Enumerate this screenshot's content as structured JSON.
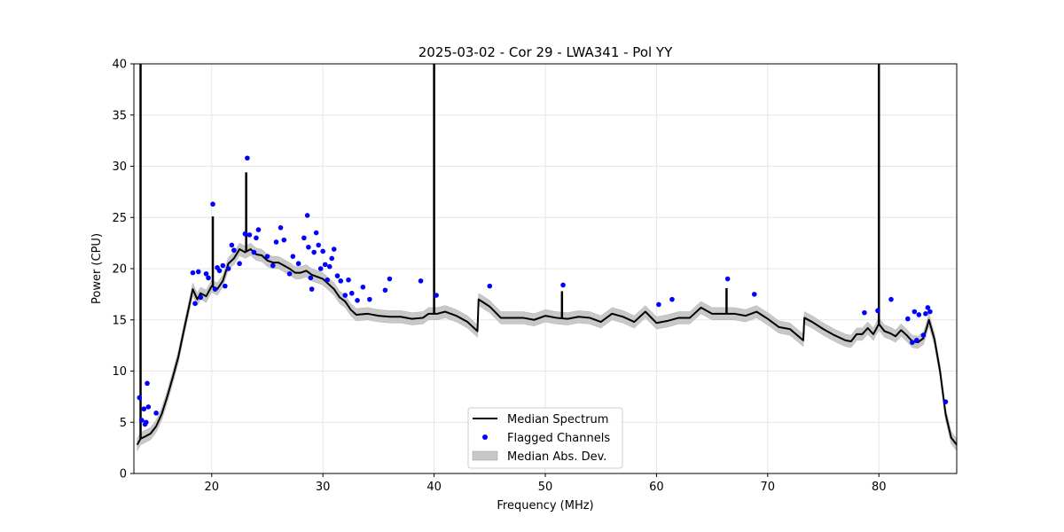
{
  "chart_data": {
    "type": "line",
    "title": "2025-03-02 - Cor 29 - LWA341 - Pol YY",
    "xlabel": "Frequency (MHz)",
    "ylabel": "Power (CPU)",
    "xlim": [
      13,
      87
    ],
    "ylim": [
      0,
      40
    ],
    "xticks": [
      20,
      30,
      40,
      50,
      60,
      70,
      80
    ],
    "xtick_labels": [
      "20",
      "30",
      "40",
      "50",
      "60",
      "70",
      "80"
    ],
    "yticks": [
      0,
      5,
      10,
      15,
      20,
      25,
      30,
      35,
      40
    ],
    "ytick_labels": [
      "0",
      "5",
      "10",
      "15",
      "20",
      "25",
      "30",
      "35",
      "40"
    ],
    "grid": true,
    "legend_position": "lower-center",
    "legend": [
      {
        "label": "Median Spectrum",
        "kind": "line",
        "color": "#000000"
      },
      {
        "label": "Flagged Channels",
        "kind": "marker",
        "color": "#0000ff"
      },
      {
        "label": "Median Abs. Dev.",
        "kind": "patch",
        "color": "#c8c8c8"
      }
    ],
    "series": [
      {
        "name": "Median Spectrum",
        "color": "#000000",
        "x": [
          13.3,
          13.6,
          14.0,
          14.5,
          15.0,
          15.5,
          16.0,
          16.5,
          17.0,
          17.5,
          18.0,
          18.3,
          18.7,
          19.0,
          19.5,
          20.0,
          20.5,
          21.0,
          21.5,
          22.0,
          22.5,
          23.0,
          23.5,
          24.0,
          24.5,
          25.0,
          25.5,
          26.0,
          26.5,
          27.0,
          27.5,
          28.0,
          28.5,
          29.0,
          29.5,
          30.0,
          30.5,
          31.0,
          31.5,
          32.0,
          32.5,
          33.0,
          34.0,
          35.0,
          36.0,
          37.0,
          38.0,
          39.0,
          39.5,
          40.3,
          41.0,
          42.0,
          43.0,
          43.9,
          44.0,
          45.0,
          46.0,
          47.0,
          48.0,
          49.0,
          50.0,
          51.0,
          52.0,
          53.0,
          54.0,
          55.0,
          56.0,
          57.0,
          58.0,
          59.0,
          60.0,
          61.0,
          62.0,
          63.0,
          64.0,
          65.0,
          66.0,
          67.0,
          68.0,
          69.0,
          70.0,
          71.0,
          72.0,
          73.2,
          73.3,
          74.0,
          75.0,
          76.0,
          77.0,
          77.5,
          78.0,
          78.5,
          79.0,
          79.5,
          80.0,
          80.5,
          81.0,
          81.5,
          82.0,
          82.5,
          83.0,
          83.5,
          84.0,
          84.3,
          84.5,
          85.0,
          85.5,
          86.0,
          86.5,
          87.0
        ],
        "y": [
          2.8,
          3.4,
          3.6,
          3.9,
          4.6,
          5.8,
          7.5,
          9.4,
          11.4,
          14.0,
          16.5,
          18.0,
          17.0,
          17.6,
          17.3,
          18.3,
          18.0,
          18.8,
          20.5,
          21.0,
          21.9,
          21.6,
          21.9,
          21.4,
          21.3,
          20.8,
          20.6,
          20.6,
          20.3,
          20.0,
          19.6,
          19.6,
          19.8,
          19.4,
          19.2,
          19.0,
          18.5,
          18.0,
          17.2,
          16.8,
          16.0,
          15.5,
          15.6,
          15.4,
          15.3,
          15.3,
          15.1,
          15.2,
          15.6,
          15.6,
          15.8,
          15.4,
          14.8,
          13.9,
          17.0,
          16.3,
          15.2,
          15.2,
          15.2,
          15.0,
          15.4,
          15.2,
          15.1,
          15.3,
          15.2,
          14.8,
          15.6,
          15.3,
          14.8,
          15.8,
          14.7,
          14.9,
          15.2,
          15.2,
          16.2,
          15.6,
          15.6,
          15.6,
          15.4,
          15.8,
          15.1,
          14.3,
          14.1,
          13.0,
          15.2,
          14.8,
          14.1,
          13.5,
          13.0,
          12.9,
          13.6,
          13.6,
          14.2,
          13.6,
          14.6,
          13.9,
          13.7,
          13.4,
          14.0,
          13.5,
          12.9,
          12.8,
          13.2,
          14.2,
          15.0,
          13.1,
          10.0,
          5.8,
          3.5,
          2.8
        ],
        "band_width": 0.6,
        "spikes": [
          {
            "x": 13.6,
            "y": 40
          },
          {
            "x": 20.1,
            "y": 25.1
          },
          {
            "x": 23.1,
            "y": 29.4
          },
          {
            "x": 40.0,
            "y": 40
          },
          {
            "x": 51.5,
            "y": 17.8
          },
          {
            "x": 66.3,
            "y": 18.1
          },
          {
            "x": 80.0,
            "y": 40
          }
        ]
      },
      {
        "name": "Flagged Channels",
        "color": "#0000ff",
        "x": [
          13.5,
          13.7,
          13.9,
          14.0,
          14.1,
          14.2,
          14.3,
          15.0,
          18.3,
          18.5,
          18.8,
          19.0,
          19.5,
          19.7,
          20.1,
          20.3,
          20.5,
          20.7,
          21.0,
          21.2,
          21.5,
          21.8,
          22.0,
          22.5,
          23.0,
          23.2,
          23.4,
          23.8,
          24.0,
          24.2,
          25.0,
          25.5,
          25.8,
          26.2,
          26.5,
          27.0,
          27.3,
          27.8,
          28.3,
          28.6,
          28.7,
          28.9,
          29.0,
          29.2,
          29.4,
          29.6,
          29.8,
          30.0,
          30.2,
          30.4,
          30.6,
          30.8,
          31.0,
          31.3,
          31.6,
          32.0,
          32.3,
          32.6,
          33.1,
          33.6,
          34.2,
          35.6,
          36.0,
          38.8,
          40.2,
          45.0,
          51.6,
          60.2,
          61.4,
          66.4,
          68.8,
          78.7,
          79.9,
          81.1,
          82.6,
          83.0,
          83.2,
          83.4,
          83.6,
          84.0,
          84.2,
          84.4,
          84.6,
          86.0
        ],
        "y": [
          7.4,
          5.2,
          6.3,
          4.8,
          5.0,
          8.8,
          6.5,
          5.9,
          19.6,
          16.6,
          19.7,
          17.2,
          19.5,
          19.1,
          26.3,
          18.0,
          20.1,
          19.8,
          20.3,
          18.3,
          20.0,
          22.3,
          21.8,
          20.5,
          23.4,
          30.8,
          23.3,
          21.6,
          23.0,
          23.8,
          21.2,
          20.3,
          22.6,
          24.0,
          22.8,
          19.5,
          21.2,
          20.5,
          23.0,
          25.2,
          22.1,
          19.1,
          18.0,
          21.6,
          23.5,
          22.3,
          20.0,
          21.7,
          20.4,
          18.9,
          20.2,
          21.0,
          21.9,
          19.3,
          18.8,
          17.4,
          18.9,
          17.6,
          16.9,
          18.2,
          17.0,
          17.9,
          19.0,
          18.8,
          17.4,
          18.3,
          18.4,
          16.5,
          17.0,
          19.0,
          17.5,
          15.7,
          15.9,
          17.0,
          15.1,
          12.8,
          15.8,
          13.0,
          15.5,
          13.5,
          15.6,
          16.2,
          15.8,
          7.0
        ]
      }
    ]
  }
}
